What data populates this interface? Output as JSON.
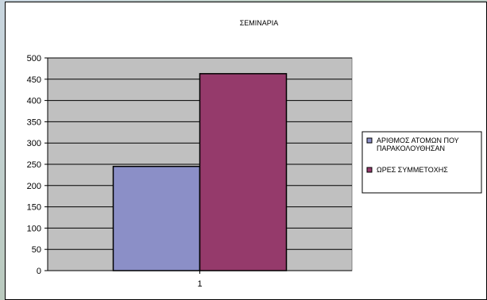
{
  "chart_data": {
    "type": "bar",
    "title": "ΣΕΜΙΝΑΡΙΑ",
    "categories": [
      "1"
    ],
    "series": [
      {
        "name": "ΑΡΙΘΜΟΣ ΑΤΟΜΩΝ ΠΟΥ ΠΑΡΑΚΟΛΟΥΘΗΣΑΝ",
        "values": [
          245
        ],
        "color": "#8b8fc7"
      },
      {
        "name": "ΩΡΕΣ ΣΥΜΜΕΤΟΧΗΣ",
        "values": [
          463
        ],
        "color": "#953a6b"
      }
    ],
    "ylim": [
      0,
      500
    ],
    "yticks": [
      0,
      50,
      100,
      150,
      200,
      250,
      300,
      350,
      400,
      450,
      500
    ],
    "plot_background": "#c0c0c0",
    "grid": true,
    "legend_position": "right"
  }
}
